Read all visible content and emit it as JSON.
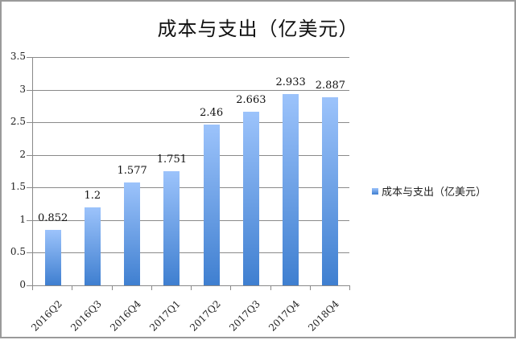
{
  "chart_data": {
    "type": "bar",
    "title": "成本与支出（亿美元）",
    "xlabel": "",
    "ylabel": "",
    "categories": [
      "2016Q2",
      "2016Q3",
      "2016Q4",
      "2017Q1",
      "2017Q2",
      "2017Q3",
      "2017Q4",
      "2018Q4"
    ],
    "series": [
      {
        "name": "成本与支出（亿美元）",
        "values": [
          0.852,
          1.2,
          1.577,
          1.751,
          2.46,
          2.663,
          2.933,
          2.887
        ]
      }
    ],
    "value_labels": [
      "0.852",
      "1.2",
      "1.577",
      "1.751",
      "2.46",
      "2.663",
      "2.933",
      "2.887"
    ],
    "ylim": [
      0,
      3.5
    ],
    "yticks": [
      "0",
      "0.5",
      "1",
      "1.5",
      "2",
      "2.5",
      "3",
      "3.5"
    ],
    "grid": true,
    "legend_position": "right",
    "colors": {
      "bar_top": "#9cc3fb",
      "bar_bottom": "#3f7fd0",
      "grid": "#8a8a8a",
      "frame": "#9a9a9a"
    }
  }
}
